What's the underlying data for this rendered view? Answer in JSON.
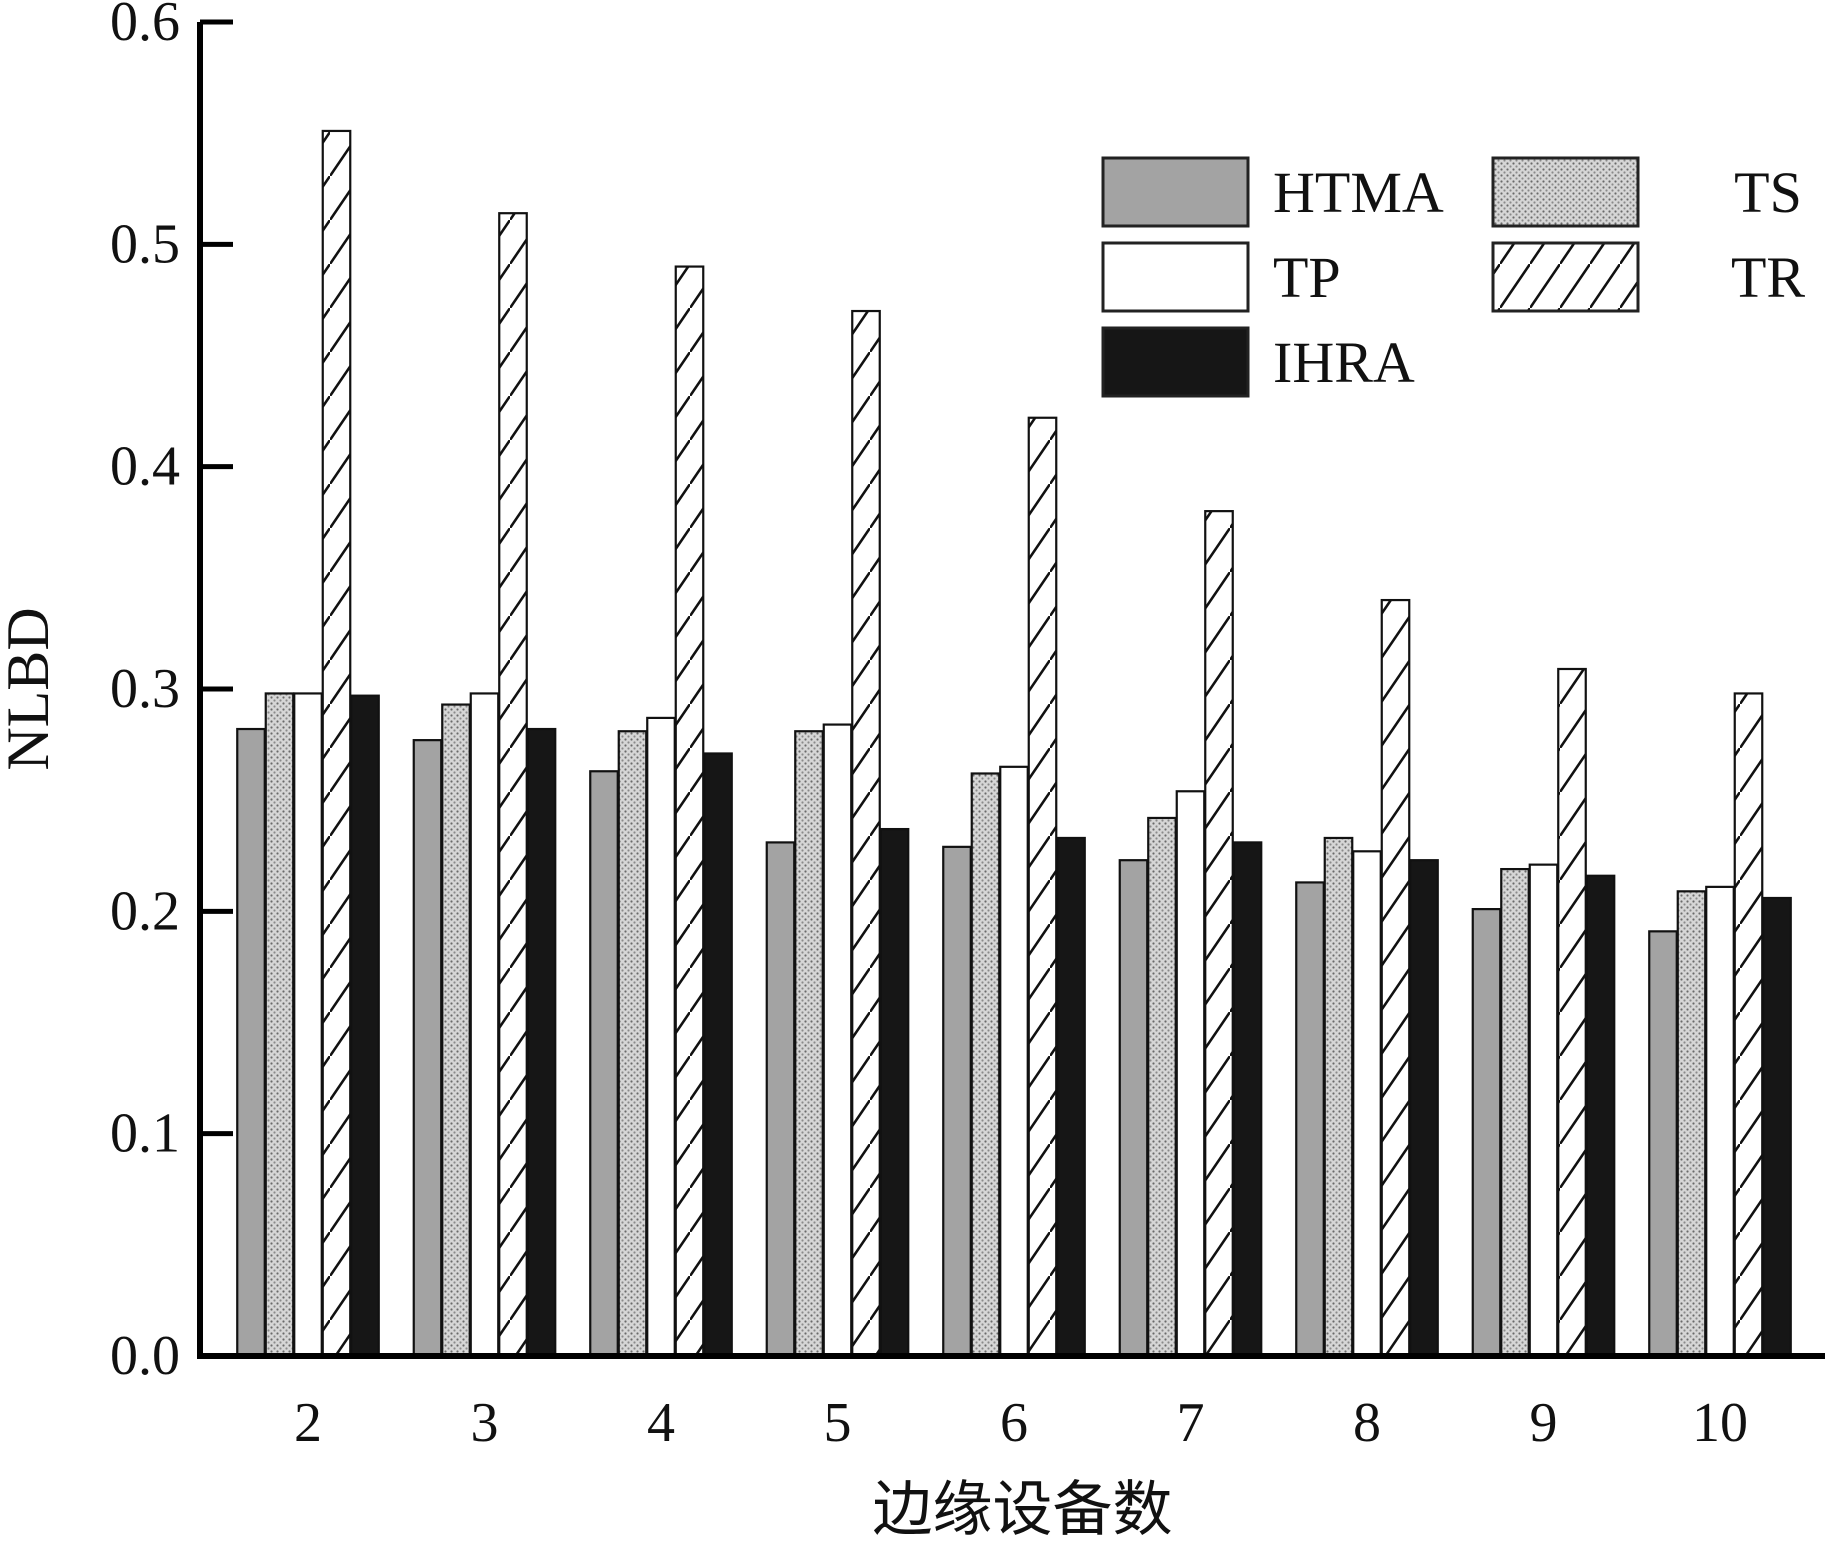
{
  "chart_data": {
    "type": "bar",
    "title": "",
    "xlabel": "边缘设备数",
    "ylabel": "NLBD",
    "categories": [
      "2",
      "3",
      "4",
      "5",
      "6",
      "7",
      "8",
      "9",
      "10"
    ],
    "ylim": [
      0.0,
      0.6
    ],
    "yticks": [
      "0.0",
      "0.1",
      "0.2",
      "0.3",
      "0.4",
      "0.5",
      "0.6"
    ],
    "grid": false,
    "legend_position": "top-right",
    "series": [
      {
        "name": "HTMA",
        "fill": "#a3a3a3",
        "pattern": "solid",
        "values": [
          0.282,
          0.277,
          0.263,
          0.231,
          0.229,
          0.223,
          0.213,
          0.201,
          0.191
        ]
      },
      {
        "name": "TS",
        "fill": "#c9c9c9",
        "pattern": "dotted",
        "values": [
          0.298,
          0.293,
          0.281,
          0.281,
          0.262,
          0.242,
          0.233,
          0.219,
          0.209
        ]
      },
      {
        "name": "TP",
        "fill": "#ffffff",
        "pattern": "solid",
        "values": [
          0.298,
          0.298,
          0.287,
          0.284,
          0.265,
          0.254,
          0.227,
          0.221,
          0.211
        ]
      },
      {
        "name": "TR",
        "fill": "#ffffff",
        "pattern": "hatched",
        "values": [
          0.551,
          0.514,
          0.49,
          0.47,
          0.422,
          0.38,
          0.34,
          0.309,
          0.298
        ]
      },
      {
        "name": "IHRA",
        "fill": "#161616",
        "pattern": "solid",
        "values": [
          0.297,
          0.282,
          0.271,
          0.237,
          0.233,
          0.231,
          0.223,
          0.216,
          0.206
        ]
      }
    ]
  }
}
